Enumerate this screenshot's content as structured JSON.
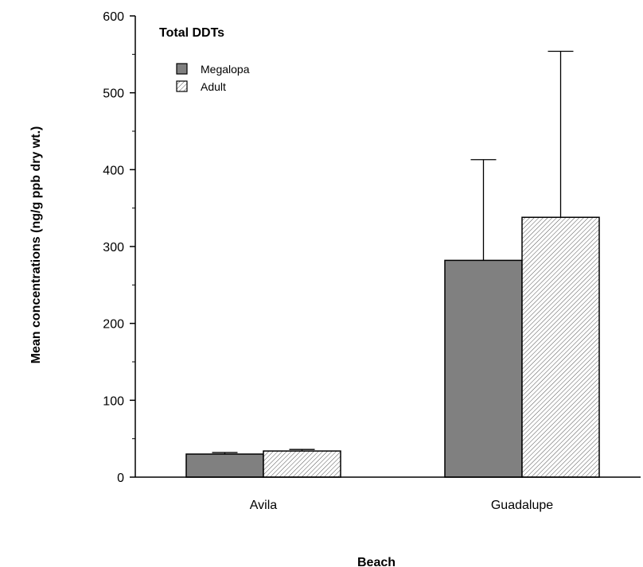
{
  "chart_data": {
    "type": "bar",
    "title": "Total DDTs",
    "xlabel": "Beach",
    "ylabel": "Mean concentrations (ng/g ppb dry wt.)",
    "categories": [
      "Avila",
      "Guadalupe"
    ],
    "series": [
      {
        "name": "Megalopa",
        "values": [
          30,
          282
        ],
        "error": [
          2,
          131
        ],
        "fill": "solid",
        "color": "#808080"
      },
      {
        "name": "Adult",
        "values": [
          34,
          338
        ],
        "error": [
          2,
          216
        ],
        "fill": "hatched",
        "color": "#ffffff"
      }
    ],
    "ylim": [
      0,
      600
    ],
    "yticks": [
      0,
      100,
      200,
      300,
      400,
      500,
      600
    ],
    "grid": false,
    "legend_position": "top-left"
  }
}
